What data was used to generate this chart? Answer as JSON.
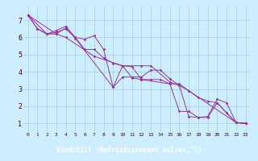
{
  "xlabel": "Windchill (Refroidissement éolien,°C)",
  "bg_color": "#cceeff",
  "grid_color": "#aaccdd",
  "line_color": "#993399",
  "xlabel_bg": "#993399",
  "xlabel_fg": "#ffffff",
  "xlim": [
    -0.5,
    23.5
  ],
  "ylim": [
    0.5,
    7.8
  ],
  "xticks": [
    0,
    1,
    2,
    3,
    4,
    5,
    6,
    7,
    8,
    9,
    10,
    11,
    12,
    13,
    14,
    15,
    16,
    17,
    18,
    19,
    20,
    21,
    22,
    23
  ],
  "yticks": [
    1,
    2,
    3,
    4,
    5,
    6,
    7
  ],
  "series1": [
    [
      0,
      7.3
    ],
    [
      1,
      6.5
    ],
    [
      2,
      6.2
    ],
    [
      3,
      6.3
    ],
    [
      4,
      6.5
    ],
    [
      5,
      6.0
    ],
    [
      6,
      5.9
    ],
    [
      7,
      6.1
    ],
    [
      8,
      5.3
    ],
    [
      9,
      3.1
    ],
    [
      10,
      3.7
    ],
    [
      11,
      3.7
    ],
    [
      12,
      3.7
    ],
    [
      13,
      4.1
    ],
    [
      14,
      4.1
    ],
    [
      15,
      3.6
    ],
    [
      16,
      3.2
    ],
    [
      17,
      1.4
    ],
    [
      18,
      1.35
    ],
    [
      19,
      1.4
    ],
    [
      20,
      2.4
    ],
    [
      21,
      2.2
    ],
    [
      22,
      1.05
    ],
    [
      23,
      1.0
    ]
  ],
  "series2": [
    [
      0,
      7.3
    ],
    [
      1,
      6.5
    ],
    [
      2,
      6.2
    ],
    [
      3,
      6.4
    ],
    [
      4,
      6.65
    ],
    [
      5,
      6.0
    ],
    [
      6,
      5.3
    ],
    [
      7,
      5.3
    ],
    [
      8,
      4.8
    ],
    [
      9,
      4.5
    ],
    [
      10,
      4.35
    ],
    [
      11,
      4.3
    ],
    [
      12,
      3.55
    ],
    [
      13,
      3.55
    ],
    [
      14,
      3.55
    ],
    [
      15,
      3.3
    ],
    [
      16,
      3.3
    ],
    [
      17,
      2.9
    ],
    [
      18,
      2.5
    ],
    [
      19,
      2.3
    ],
    [
      20,
      2.2
    ],
    [
      21,
      1.6
    ],
    [
      22,
      1.05
    ],
    [
      23,
      1.0
    ]
  ],
  "series3": [
    [
      0,
      7.3
    ],
    [
      2,
      6.2
    ],
    [
      3,
      6.2
    ],
    [
      4,
      6.0
    ],
    [
      7,
      4.9
    ],
    [
      10,
      4.35
    ],
    [
      11,
      3.65
    ],
    [
      12,
      3.55
    ],
    [
      15,
      3.3
    ],
    [
      16,
      1.7
    ],
    [
      17,
      1.7
    ],
    [
      18,
      1.35
    ],
    [
      19,
      1.35
    ],
    [
      20,
      2.2
    ],
    [
      22,
      1.05
    ],
    [
      23,
      1.0
    ]
  ],
  "series4": [
    [
      0,
      7.3
    ],
    [
      3,
      6.2
    ],
    [
      4,
      6.55
    ],
    [
      5,
      5.95
    ],
    [
      9,
      3.1
    ],
    [
      10,
      4.35
    ],
    [
      12,
      4.35
    ],
    [
      13,
      4.35
    ],
    [
      15,
      3.4
    ],
    [
      16,
      3.2
    ],
    [
      17,
      2.9
    ],
    [
      22,
      1.05
    ],
    [
      23,
      1.0
    ]
  ]
}
